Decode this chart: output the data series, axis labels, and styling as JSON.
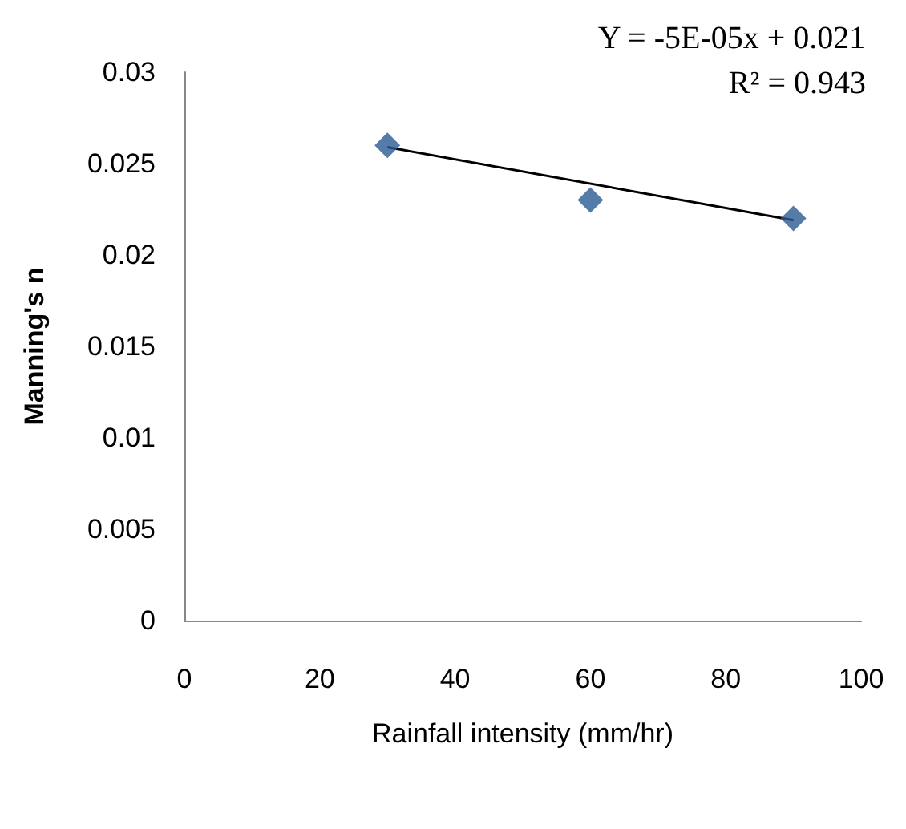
{
  "chart_data": {
    "type": "scatter",
    "xlabel": "Rainfall intensity (mm/hr)",
    "ylabel": "Manning's n",
    "x": [
      30,
      60,
      90
    ],
    "series": [
      {
        "color": "#2b5a92",
        "marker": "diamond",
        "values": [
          0.026,
          0.023,
          0.022
        ]
      },
      {
        "type": "line",
        "color": "#000000",
        "marker": "none",
        "line_style": "solid",
        "x": [
          30,
          90
        ],
        "values": [
          0.0259,
          0.0219
        ]
      }
    ],
    "annotations": [
      "Y = -5E-05x + 0.021",
      "R² = 0.943"
    ],
    "xlim": [
      0,
      100
    ],
    "xticks": [
      0,
      20,
      40,
      60,
      80,
      100
    ],
    "ylim": [
      0,
      0.03
    ],
    "yticks": [
      0,
      0.005,
      0.01,
      0.015,
      0.02,
      0.025,
      0.03
    ],
    "grid": false
  }
}
